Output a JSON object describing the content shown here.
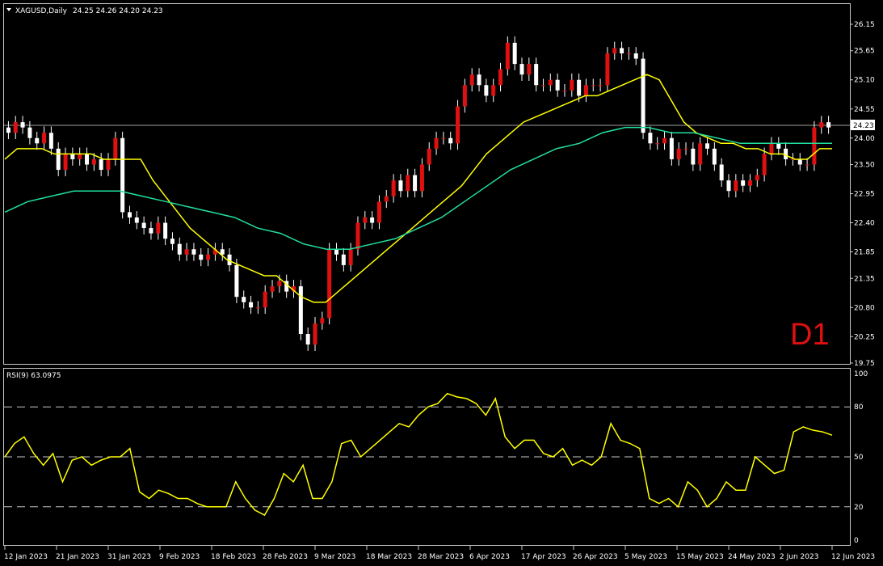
{
  "header": {
    "symbol_label": "XAGUSD,Daily",
    "ohlc_label": "24.25 24.26 24.20 24.23"
  },
  "timeframe_label": "D1",
  "rsi_label": "RSI(9) 63.0975",
  "price_axis": {
    "labels": [
      "26.15",
      "25.65",
      "25.10",
      "24.55",
      "24.00",
      "23.50",
      "22.95",
      "22.40",
      "21.85",
      "21.35",
      "20.80",
      "20.25",
      "19.75"
    ],
    "current_price_label": "24.23"
  },
  "rsi_axis": {
    "labels": [
      "100",
      "80",
      "50",
      "20",
      "0"
    ]
  },
  "date_labels": [
    "12 Jan 2023",
    "21 Jan 2023",
    "31 Jan 2023",
    "9 Feb 2023",
    "18 Feb 2023",
    "28 Feb 2023",
    "9 Mar 2023",
    "18 Mar 2023",
    "28 Mar 2023",
    "6 Apr 2023",
    "17 Apr 2023",
    "26 Apr 2023",
    "5 May 2023",
    "15 May 2023",
    "24 May 2023",
    "2 Jun 2023",
    "12 Jun 2023"
  ],
  "colors": {
    "background": "#000000",
    "bull_candle": "#e01010",
    "bear_candle": "#ffffff",
    "wick": "#ffffff",
    "ma_fast": "#ffff00",
    "ma_slow": "#20e0a0",
    "rsi_line": "#ffff00",
    "grid": "#c8c8c8"
  },
  "chart_data": {
    "type": "candlestick",
    "symbol": "XAGUSD",
    "timeframe": "Daily",
    "last_ohlc": {
      "open": 24.25,
      "high": 24.26,
      "low": 24.2,
      "close": 24.23
    },
    "price_range": [
      19.75,
      26.15
    ],
    "close": [
      24.1,
      24.3,
      24.2,
      24.0,
      23.9,
      24.1,
      23.8,
      23.4,
      23.7,
      23.6,
      23.7,
      23.5,
      23.6,
      23.4,
      23.6,
      24.0,
      22.6,
      22.5,
      22.4,
      22.3,
      22.2,
      22.4,
      22.1,
      22.0,
      21.8,
      21.9,
      21.8,
      21.7,
      21.8,
      21.9,
      21.8,
      21.6,
      21.0,
      20.9,
      20.8,
      20.8,
      21.1,
      21.2,
      21.3,
      21.1,
      21.2,
      20.3,
      20.1,
      20.5,
      20.6,
      21.9,
      21.8,
      21.6,
      21.9,
      22.4,
      22.5,
      22.4,
      22.8,
      22.9,
      23.2,
      23.0,
      23.3,
      23.0,
      23.5,
      23.8,
      24.0,
      24.0,
      23.9,
      24.6,
      25.0,
      25.2,
      25.0,
      24.8,
      25.0,
      25.3,
      25.8,
      25.4,
      25.2,
      25.4,
      25.0,
      25.0,
      25.1,
      24.9,
      24.9,
      25.1,
      24.8,
      25.0,
      25.0,
      25.0,
      25.6,
      25.7,
      25.6,
      25.6,
      25.5,
      24.1,
      23.9,
      23.9,
      24.0,
      23.6,
      23.8,
      23.8,
      23.5,
      23.9,
      23.8,
      23.5,
      23.2,
      23.0,
      23.2,
      23.1,
      23.2,
      23.3,
      23.7,
      23.9,
      23.8,
      23.6,
      23.6,
      23.5,
      23.5,
      24.2,
      24.3,
      24.2
    ],
    "moving_averages": [
      {
        "color": "#ffff00",
        "values": [
          23.6,
          23.8,
          23.8,
          23.8,
          23.7,
          23.7,
          23.7,
          23.7,
          23.6,
          23.6,
          23.6,
          23.6,
          23.2,
          22.9,
          22.6,
          22.3,
          22.1,
          21.9,
          21.7,
          21.6,
          21.5,
          21.4,
          21.4,
          21.2,
          21.0,
          20.9,
          20.9,
          21.1,
          21.3,
          21.5,
          21.7,
          21.9,
          22.1,
          22.3,
          22.5,
          22.7,
          22.9,
          23.1,
          23.4,
          23.7,
          23.9,
          24.1,
          24.3,
          24.4,
          24.5,
          24.6,
          24.7,
          24.8,
          24.8,
          24.9,
          25.0,
          25.1,
          25.2,
          25.1,
          24.7,
          24.3,
          24.1,
          24.0,
          23.9,
          23.9,
          23.8,
          23.8,
          23.7,
          23.7,
          23.6,
          23.6,
          23.8,
          23.8
        ]
      },
      {
        "color": "#20e0a0",
        "values": [
          22.6,
          22.8,
          22.9,
          23.0,
          23.0,
          23.0,
          22.9,
          22.8,
          22.7,
          22.6,
          22.5,
          22.3,
          22.2,
          22.0,
          21.9,
          21.9,
          22.0,
          22.1,
          22.3,
          22.5,
          22.8,
          23.1,
          23.4,
          23.6,
          23.8,
          23.9,
          24.1,
          24.2,
          24.2,
          24.1,
          24.1,
          24.0,
          23.9,
          23.9,
          23.9,
          23.9,
          23.9
        ]
      }
    ],
    "indicator": {
      "name": "RSI",
      "period": 9,
      "value": 63.0975,
      "levels": [
        80,
        50,
        20
      ],
      "range": [
        0,
        100
      ],
      "values": [
        50,
        58,
        62,
        52,
        45,
        52,
        35,
        48,
        50,
        45,
        48,
        50,
        50,
        55,
        29,
        25,
        30,
        28,
        25,
        25,
        22,
        20,
        20,
        20,
        35,
        25,
        18,
        15,
        25,
        40,
        35,
        45,
        25,
        25,
        35,
        58,
        60,
        50,
        55,
        60,
        65,
        70,
        68,
        75,
        80,
        82,
        88,
        86,
        85,
        82,
        75,
        85,
        62,
        55,
        60,
        60,
        52,
        50,
        55,
        45,
        48,
        45,
        50,
        70,
        60,
        58,
        55,
        25,
        22,
        25,
        20,
        35,
        30,
        20,
        25,
        35,
        30,
        30,
        50,
        45,
        40,
        42,
        65,
        68,
        66,
        65,
        63
      ]
    },
    "dates": [
      "12 Jan 2023",
      "21 Jan 2023",
      "31 Jan 2023",
      "9 Feb 2023",
      "18 Feb 2023",
      "28 Feb 2023",
      "9 Mar 2023",
      "18 Mar 2023",
      "28 Mar 2023",
      "6 Apr 2023",
      "17 Apr 2023",
      "26 Apr 2023",
      "5 May 2023",
      "15 May 2023",
      "24 May 2023",
      "2 Jun 2023",
      "12 Jun 2023"
    ]
  }
}
